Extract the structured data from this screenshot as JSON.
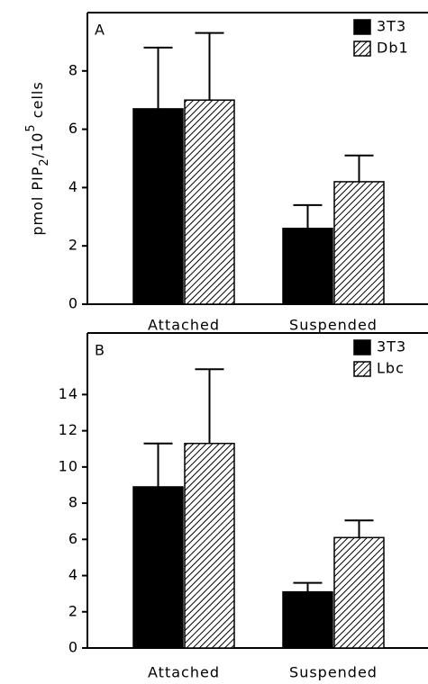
{
  "chart_data": [
    {
      "type": "bar",
      "label": "A",
      "ylabel_parts": [
        "pmol PIP",
        "2",
        "/10",
        "5",
        " cells"
      ],
      "categories": [
        "Attached",
        "Suspended"
      ],
      "series": [
        {
          "name": "3T3",
          "color": "#000000",
          "hatch": false,
          "values": [
            6.7,
            2.6
          ],
          "errors": [
            2.1,
            0.8
          ]
        },
        {
          "name": "Db1",
          "color": "#000000",
          "hatch": true,
          "values": [
            7.0,
            4.2
          ],
          "errors": [
            2.3,
            0.9
          ]
        }
      ],
      "ylim": [
        0,
        10
      ],
      "yticks": [
        0,
        2,
        4,
        6,
        8
      ]
    },
    {
      "type": "bar",
      "label": "B",
      "categories": [
        "Attached",
        "Suspended"
      ],
      "series": [
        {
          "name": "3T3",
          "color": "#000000",
          "hatch": false,
          "values": [
            8.9,
            3.1
          ],
          "errors": [
            2.4,
            0.5
          ]
        },
        {
          "name": "Lbc",
          "color": "#000000",
          "hatch": true,
          "values": [
            11.3,
            6.1
          ],
          "errors": [
            4.1,
            0.95
          ]
        }
      ],
      "ylim": [
        0,
        17.4
      ],
      "yticks": [
        0,
        2,
        4,
        6,
        8,
        10,
        12,
        14
      ]
    }
  ]
}
